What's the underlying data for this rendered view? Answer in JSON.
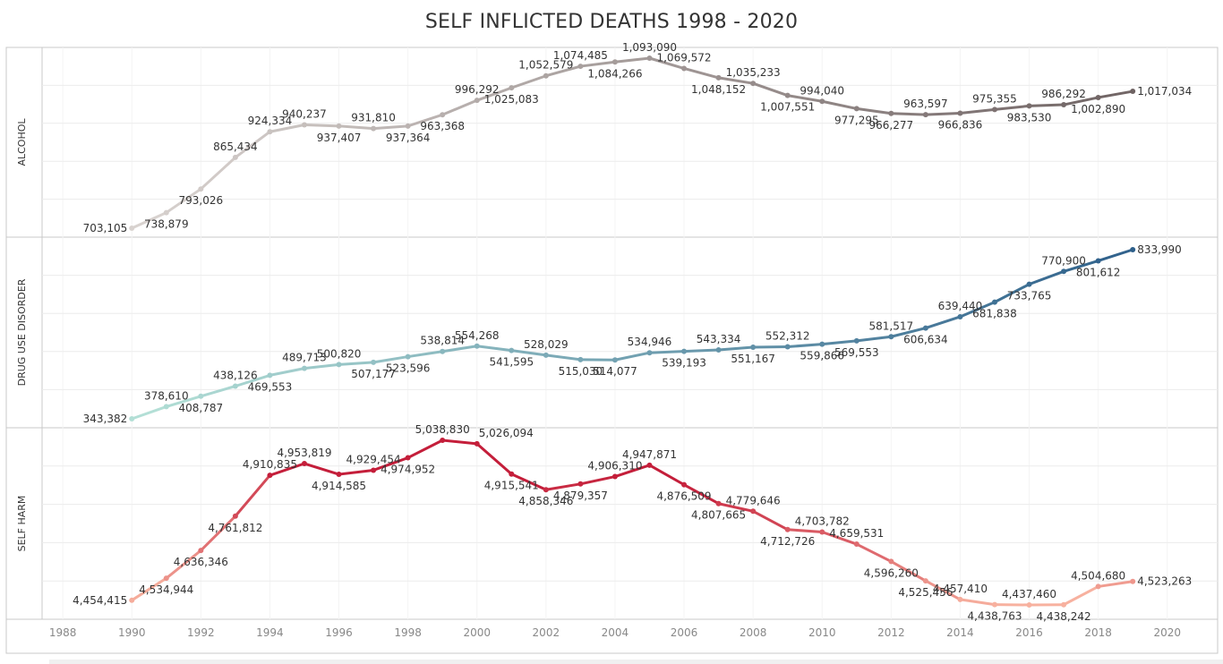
{
  "title": "SELF INFLICTED DEATHS 1998 - 2020",
  "colors": {
    "alcohol_light": "#d8d2cf",
    "alcohol_dark": "#6e6262",
    "drug_light": "#b3dfd6",
    "drug_dark": "#2d5f8a",
    "self_harm_light": "#f7b19f",
    "self_harm_dark": "#c41e3a",
    "grid": "#ececec",
    "frame": "#c8c8c8",
    "label": "#333333",
    "axis_label": "#888888"
  },
  "chart_data": {
    "type": "line",
    "title": "SELF INFLICTED DEATHS 1998 - 2020",
    "xlim": [
      1987.4,
      2021.2
    ],
    "x_ticks": [
      "1988",
      "1990",
      "1992",
      "1994",
      "1996",
      "1998",
      "2000",
      "2002",
      "2004",
      "2006",
      "2008",
      "2010",
      "2012",
      "2014",
      "2016",
      "2018",
      "2020"
    ],
    "grid": true,
    "x": [
      1990,
      1991,
      1992,
      1993,
      1994,
      1995,
      1996,
      1997,
      1998,
      1999,
      2000,
      2001,
      2002,
      2003,
      2004,
      2005,
      2006,
      2007,
      2008,
      2009,
      2010,
      2011,
      2012,
      2013,
      2014,
      2015,
      2016,
      2017,
      2018,
      2019
    ],
    "panels": [
      {
        "name": "ALCOHOL",
        "values": [
          703105,
          738879,
          793026,
          865434,
          924334,
          940237,
          937407,
          931810,
          937364,
          963368,
          996292,
          1025083,
          1052579,
          1074485,
          1084266,
          1093090,
          1069572,
          1048152,
          1035233,
          1007551,
          994040,
          977295,
          966277,
          963597,
          966836,
          975355,
          983530,
          986292,
          1002890,
          1017034
        ],
        "labels": [
          "703,105",
          "738,879",
          "793,026",
          "865,434",
          "924,334",
          "940,237",
          "937,407",
          "931,810",
          "937,364",
          "963,368",
          "996,292",
          "1,025,083",
          "1,052,579",
          "1,074,485",
          "1,084,266",
          "1,093,090",
          "1,069,572",
          "1,048,152",
          "1,035,233",
          "1,007,551",
          "994,040",
          "977,295",
          "966,277",
          "963,597",
          "966,836",
          "975,355",
          "983,530",
          "986,292",
          "1,002,890",
          "1,017,034"
        ],
        "positions": [
          "L",
          "B",
          "B",
          "A",
          "A",
          "A",
          "B",
          "A",
          "B",
          "B",
          "A",
          "B",
          "A",
          "A",
          "B",
          "A",
          "A",
          "B",
          "A",
          "B",
          "A",
          "B",
          "B",
          "A",
          "B",
          "A",
          "B",
          "A",
          "B",
          "R"
        ]
      },
      {
        "name": "DRUG USE DISORDER",
        "values": [
          343382,
          378610,
          408787,
          438126,
          469553,
          489713,
          500820,
          507177,
          523596,
          538814,
          554268,
          541595,
          528029,
          515030,
          514077,
          534946,
          539193,
          543334,
          551167,
          552312,
          559866,
          569553,
          581517,
          606634,
          639440,
          681838,
          733765,
          770900,
          801612,
          833990
        ],
        "labels": [
          "343,382",
          "378,610",
          "408,787",
          "438,126",
          "469,553",
          "489,713",
          "500,820",
          "507,177",
          "523,596",
          "538,814",
          "554,268",
          "541,595",
          "528,029",
          "515,030",
          "514,077",
          "534,946",
          "539,193",
          "543,334",
          "551,167",
          "552,312",
          "559,866",
          "569,553",
          "581,517",
          "606,634",
          "639,440",
          "681,838",
          "733,765",
          "770,900",
          "801,612",
          "833,990"
        ],
        "positions": [
          "L",
          "A",
          "B",
          "A",
          "B",
          "A",
          "A",
          "B",
          "B",
          "A",
          "A",
          "B",
          "A",
          "B",
          "B",
          "A",
          "B",
          "A",
          "B",
          "A",
          "B",
          "B",
          "A",
          "B",
          "A",
          "B",
          "B",
          "A",
          "B",
          "R"
        ]
      },
      {
        "name": "SELF HARM",
        "values": [
          4454415,
          4534944,
          4636346,
          4761812,
          4910835,
          4953819,
          4914585,
          4929454,
          4974952,
          5038830,
          5026094,
          4915541,
          4858346,
          4879357,
          4906310,
          4947871,
          4876509,
          4807665,
          4779646,
          4712726,
          4703782,
          4659531,
          4596260,
          4525456,
          4457410,
          4438763,
          4437460,
          4438242,
          4504680,
          4523263
        ],
        "labels": [
          "4,454,415",
          "4,534,944",
          "4,636,346",
          "4,761,812",
          "4,910,835",
          "4,953,819",
          "4,914,585",
          "4,929,454",
          "4,974,952",
          "5,038,830",
          "5,026,094",
          "4,915,541",
          "4,858,346",
          "4,879,357",
          "4,906,310",
          "4,947,871",
          "4,876,509",
          "4,807,665",
          "4,779,646",
          "4,712,726",
          "4,703,782",
          "4,659,531",
          "4,596,260",
          "4,525,456",
          "4,457,410",
          "4,438,763",
          "4,437,460",
          "4,438,242",
          "4,504,680",
          "4,523,263"
        ],
        "positions": [
          "L",
          "B",
          "B",
          "B",
          "A",
          "A",
          "B",
          "A",
          "B",
          "A",
          "AR",
          "B",
          "B",
          "B",
          "A",
          "A",
          "B",
          "B",
          "A",
          "B",
          "A",
          "A",
          "B",
          "B",
          "A",
          "B",
          "A",
          "B",
          "A",
          "R"
        ]
      }
    ]
  }
}
